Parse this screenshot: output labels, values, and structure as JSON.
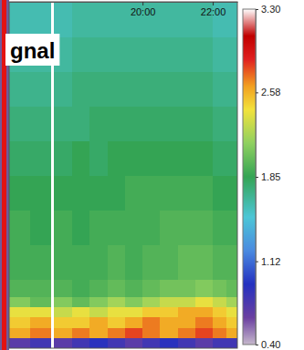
{
  "chart_data": {
    "type": "heatmap",
    "annotations": [
      "gnal"
    ],
    "x": [
      16.2,
      16.8,
      17.37,
      17.47,
      18.0,
      18.5,
      19.0,
      19.5,
      20.0,
      20.5,
      21.0,
      21.5,
      22.0,
      22.4,
      22.7
    ],
    "y": [
      0,
      3,
      6,
      9,
      12,
      15,
      20,
      30,
      40,
      50,
      60,
      70,
      80,
      90,
      100
    ],
    "z": [
      [
        0.7,
        0.8,
        null,
        0.7,
        0.8,
        0.9,
        0.8,
        0.7,
        0.8,
        0.9,
        0.8,
        0.7,
        0.8,
        0.8
      ],
      [
        2.6,
        2.7,
        null,
        2.6,
        2.7,
        2.6,
        2.7,
        2.8,
        2.7,
        2.6,
        2.7,
        2.8,
        2.7,
        2.6
      ],
      [
        2.5,
        2.6,
        null,
        2.5,
        2.5,
        2.6,
        2.5,
        2.6,
        2.7,
        2.6,
        2.6,
        2.7,
        2.6,
        2.5
      ],
      [
        2.4,
        2.4,
        null,
        2.3,
        2.4,
        2.3,
        2.4,
        2.4,
        2.5,
        2.5,
        2.6,
        2.6,
        2.5,
        2.4
      ],
      [
        2.1,
        2.0,
        null,
        2.1,
        2.0,
        2.1,
        2.2,
        2.1,
        2.2,
        2.3,
        2.3,
        2.4,
        2.3,
        2.2
      ],
      [
        1.95,
        1.95,
        null,
        1.95,
        1.9,
        1.95,
        2.0,
        1.95,
        2.0,
        2.05,
        2.05,
        2.1,
        2.05,
        2.0
      ],
      [
        1.9,
        1.9,
        null,
        1.9,
        1.9,
        1.9,
        1.95,
        1.9,
        1.95,
        1.95,
        2.0,
        2.0,
        1.95,
        1.95
      ],
      [
        1.9,
        1.85,
        null,
        1.9,
        1.85,
        1.9,
        1.9,
        1.9,
        1.9,
        1.95,
        1.95,
        1.95,
        1.9,
        1.9
      ],
      [
        1.85,
        1.85,
        null,
        1.85,
        1.85,
        1.85,
        1.85,
        1.9,
        1.9,
        1.9,
        1.9,
        1.9,
        1.85,
        1.85
      ],
      [
        1.8,
        1.8,
        null,
        1.8,
        1.85,
        1.8,
        1.85,
        1.85,
        1.85,
        1.85,
        1.85,
        1.85,
        1.8,
        1.8
      ],
      [
        1.75,
        1.75,
        null,
        1.75,
        1.75,
        1.8,
        1.8,
        1.8,
        1.8,
        1.8,
        1.8,
        1.8,
        1.75,
        1.75
      ],
      [
        1.7,
        1.7,
        null,
        1.7,
        1.75,
        1.75,
        1.75,
        1.75,
        1.75,
        1.75,
        1.75,
        1.75,
        1.7,
        1.7
      ],
      [
        1.65,
        1.65,
        null,
        1.65,
        1.7,
        1.7,
        1.7,
        1.7,
        1.7,
        1.7,
        1.7,
        1.7,
        1.65,
        1.65
      ],
      [
        1.6,
        1.6,
        null,
        1.6,
        1.65,
        1.65,
        1.65,
        1.65,
        1.65,
        1.65,
        1.65,
        1.65,
        1.6,
        1.6
      ]
    ],
    "xlim": [
      16.2,
      22.7
    ],
    "xticks": [
      {
        "value": 20,
        "label": "20:00"
      },
      {
        "value": 22,
        "label": "22:00"
      }
    ],
    "ylim": [
      0,
      100
    ],
    "tick_labels": "x",
    "colorbar": {
      "lim": [
        0.4,
        3.3
      ],
      "ticks": [
        {
          "value": 0.4,
          "label": "0.40"
        },
        1.12,
        1.85,
        2.58,
        {
          "value": 3.3,
          "label": "3.30"
        }
      ]
    }
  }
}
